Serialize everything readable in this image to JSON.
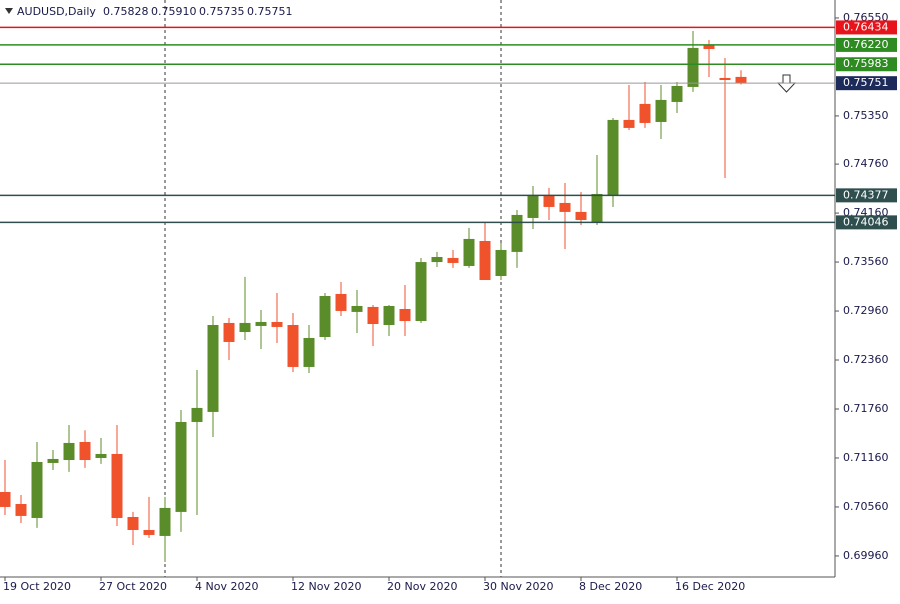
{
  "chart_data": {
    "type": "candlestick",
    "title": "AUDUSD,Daily",
    "header_ohlc": [
      "0.75828",
      "0.75910",
      "0.75735",
      "0.75751"
    ],
    "categories": [
      "19 Oct 2020",
      null,
      null,
      null,
      null,
      null,
      "27 Oct 2020",
      null,
      null,
      null,
      null,
      null,
      "4 Nov 2020",
      null,
      null,
      null,
      null,
      null,
      "12 Nov 2020",
      null,
      null,
      null,
      null,
      null,
      "20 Nov 2020",
      null,
      null,
      null,
      null,
      null,
      "30 Nov 2020",
      null,
      null,
      null,
      null,
      null,
      "8 Dec 2020",
      null,
      null,
      null,
      null,
      null,
      "16 Dec 2020",
      null,
      null,
      null,
      null
    ],
    "open": [
      0.70743,
      0.70596,
      0.70425,
      0.71099,
      0.71135,
      0.71356,
      0.7116,
      0.71209,
      0.70437,
      0.70278,
      0.70205,
      0.70499,
      0.71601,
      0.71724,
      0.72814,
      0.72703,
      0.72777,
      0.72826,
      0.72789,
      0.72275,
      0.72642,
      0.73169,
      0.72949,
      0.7301,
      0.72789,
      0.72985,
      0.72838,
      0.7356,
      0.7361,
      0.73512,
      0.73818,
      0.73389,
      0.73684,
      0.741,
      0.74382,
      0.74284,
      0.74174,
      0.74039,
      0.7437,
      0.75301,
      0.75497,
      0.75276,
      0.75521,
      0.75705,
      0.76219,
      0.75815,
      0.75828
    ],
    "high": [
      0.71135,
      0.70707,
      0.71356,
      0.71258,
      0.71564,
      0.715,
      0.71405,
      0.71564,
      0.70499,
      0.70683,
      0.70683,
      0.71748,
      0.72238,
      0.72899,
      0.72875,
      0.73378,
      0.72973,
      0.73181,
      0.72936,
      0.72789,
      0.73181,
      0.73316,
      0.73218,
      0.73034,
      0.73034,
      0.73279,
      0.7361,
      0.73684,
      0.73708,
      0.73978,
      0.74051,
      0.73794,
      0.74198,
      0.74492,
      0.74468,
      0.74529,
      0.74418,
      0.74872,
      0.75325,
      0.75729,
      0.75766,
      0.75729,
      0.75766,
      0.76391,
      0.7628,
      0.7606,
      0.7591
    ],
    "low": [
      0.70462,
      0.70364,
      0.70303,
      0.71013,
      0.70989,
      0.71038,
      0.71087,
      0.70327,
      0.70094,
      0.7018,
      0.69886,
      0.70254,
      0.70462,
      0.71417,
      0.7236,
      0.72605,
      0.72495,
      0.72569,
      0.72213,
      0.72201,
      0.72605,
      0.72899,
      0.72691,
      0.72532,
      0.72654,
      0.72654,
      0.72814,
      0.735,
      0.73488,
      0.73488,
      0.7334,
      0.7334,
      0.73488,
      0.73965,
      0.74075,
      0.7372,
      0.74014,
      0.74014,
      0.74235,
      0.75178,
      0.75203,
      0.75068,
      0.75386,
      0.75644,
      0.75827,
      0.7459,
      0.75735
    ],
    "close": [
      0.7056,
      0.7045,
      0.71111,
      0.71148,
      0.71344,
      0.71135,
      0.71209,
      0.70425,
      0.70278,
      0.70217,
      0.70548,
      0.71601,
      0.71773,
      0.72789,
      0.72581,
      0.72814,
      0.72826,
      0.72765,
      0.72275,
      0.7263,
      0.73144,
      0.72961,
      0.73022,
      0.72801,
      0.73022,
      0.72838,
      0.7356,
      0.73622,
      0.73549,
      0.73843,
      0.7334,
      0.73708,
      0.74137,
      0.74382,
      0.74235,
      0.74174,
      0.74075,
      0.74394,
      0.75301,
      0.75203,
      0.75264,
      0.75546,
      0.75717,
      0.76183,
      0.7617,
      0.7579,
      0.75751
    ],
    "up_color": "#5b8c2a",
    "down_color": "#f0522c",
    "ylim": [
      0.69702,
      0.7677
    ],
    "yticks": [
      {
        "value": 0.7655,
        "label": "0.76550"
      },
      {
        "value": 0.7535,
        "label": "0.75350"
      },
      {
        "value": 0.7476,
        "label": "0.74760"
      },
      {
        "value": 0.7416,
        "label": "0.74160"
      },
      {
        "value": 0.7356,
        "label": "0.73560"
      },
      {
        "value": 0.7296,
        "label": "0.72960"
      },
      {
        "value": 0.7236,
        "label": "0.72360"
      },
      {
        "value": 0.7176,
        "label": "0.71760"
      },
      {
        "value": 0.7116,
        "label": "0.71160"
      },
      {
        "value": 0.7056,
        "label": "0.70560"
      },
      {
        "value": 0.6996,
        "label": "0.69960"
      }
    ],
    "levels": [
      {
        "value": 0.76434,
        "label": "0.76434",
        "color": "#e8141b"
      },
      {
        "value": 0.7622,
        "label": "0.76220",
        "color": "#2e8b22"
      },
      {
        "value": 0.75983,
        "label": "0.75983",
        "color": "#2e8b22"
      },
      {
        "value": 0.75751,
        "label": "0.75751",
        "color": "#999999",
        "label_color": "#1d2b5a"
      },
      {
        "value": 0.74377,
        "label": "0.74377",
        "color": "#2f4f4f"
      },
      {
        "value": 0.74046,
        "label": "0.74046",
        "color": "#2f4f4f"
      }
    ]
  }
}
